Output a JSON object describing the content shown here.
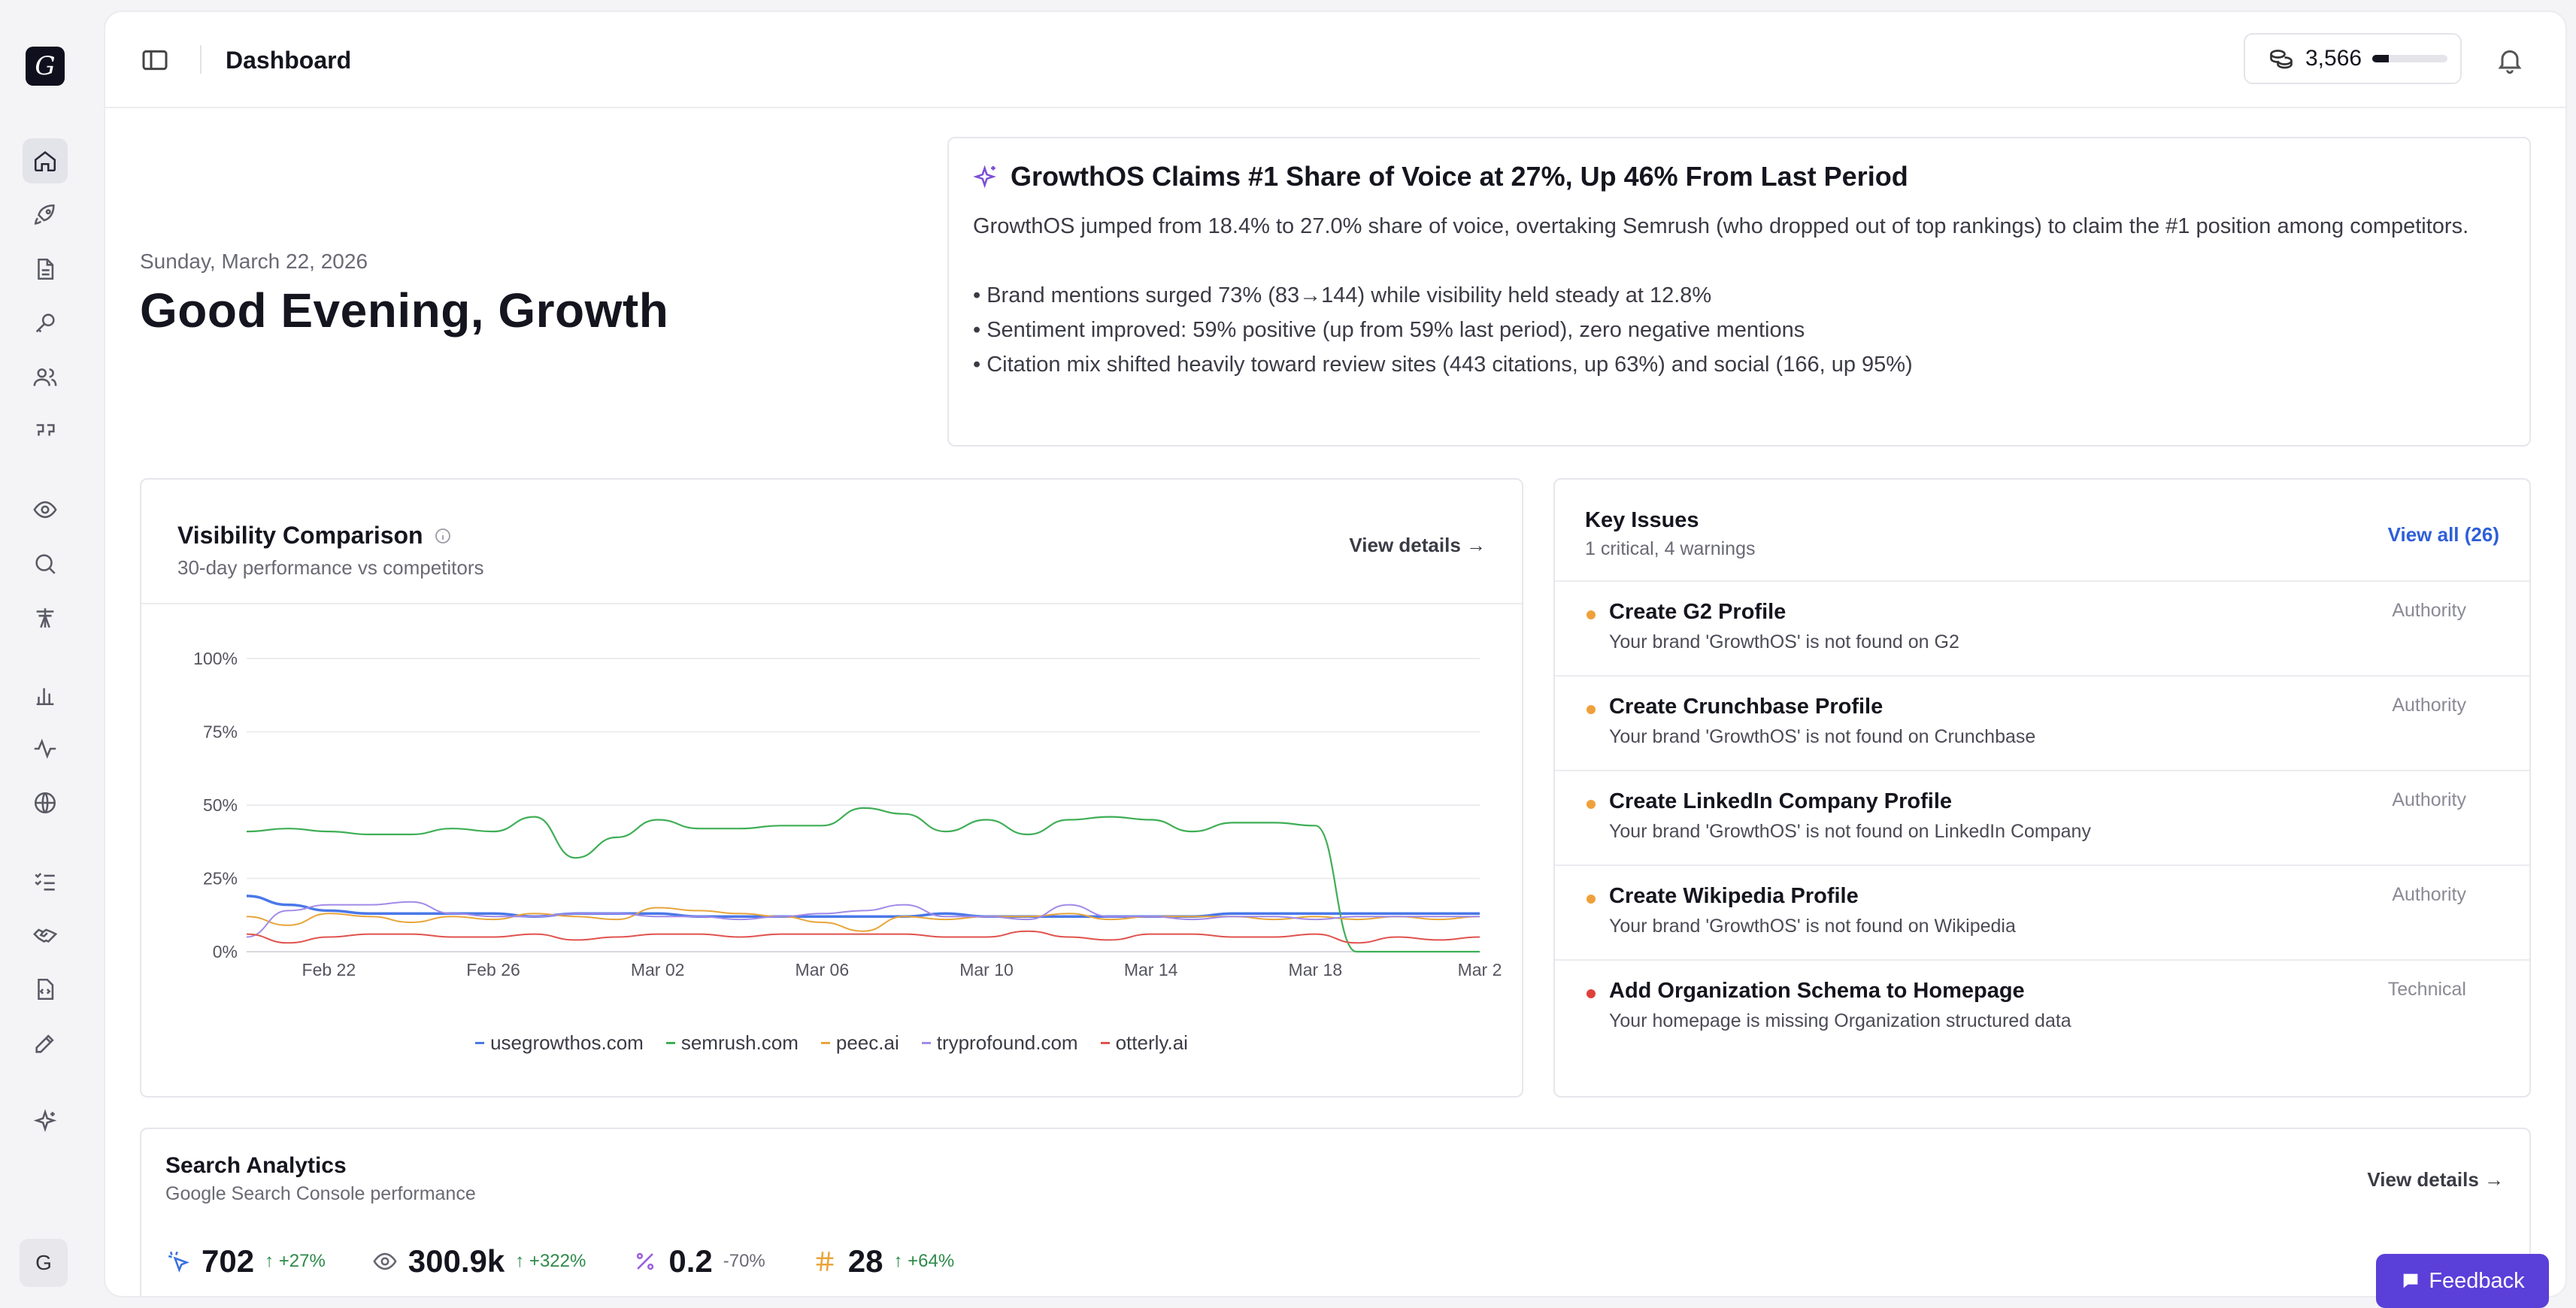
{
  "app": {
    "logo_letter": "G",
    "avatar_letter": "G"
  },
  "header": {
    "title": "Dashboard",
    "credits": "3,566",
    "credits_progress": 0.22
  },
  "greeting": {
    "date": "Sunday, March 22, 2026",
    "text": "Good Evening, Growth"
  },
  "insight": {
    "title": "GrowthOS Claims #1 Share of Voice at 27%, Up 46% From Last Period",
    "body": "GrowthOS jumped from 18.4% to 27.0% share of voice, overtaking Semrush (who dropped out of top rankings) to claim the #1 position among competitors.",
    "bullets": [
      "• Brand mentions surged 73% (83→144) while visibility held steady at 12.8%",
      "• Sentiment improved: 59% positive (up from 59% last period), zero negative mentions",
      "• Citation mix shifted heavily toward review sites (443 citations, up 63%) and social (166, up 95%)"
    ]
  },
  "visibility": {
    "title": "Visibility Comparison",
    "subtitle": "30-day performance vs competitors",
    "view_details": "View details →"
  },
  "chart_data": {
    "type": "line",
    "title": "Visibility Comparison",
    "ylim": [
      0,
      100
    ],
    "yticks": [
      "100%",
      "75%",
      "50%",
      "25%",
      "0%"
    ],
    "ytick_values": [
      100,
      75,
      50,
      25,
      0
    ],
    "xticks": [
      "Feb 22",
      "Feb 26",
      "Mar 02",
      "Mar 06",
      "Mar 10",
      "Mar 14",
      "Mar 18",
      "Mar 2"
    ],
    "xtick_index": [
      2,
      6,
      10,
      14,
      18,
      22,
      26,
      30
    ],
    "n_points": 31,
    "series": [
      {
        "name": "usegrowthos.com",
        "color": "#4a78e8",
        "width": 3.5,
        "values": [
          19,
          16,
          14,
          13,
          13,
          13,
          13,
          12,
          13,
          13,
          13,
          12,
          12,
          12,
          12,
          12,
          12,
          13,
          12,
          12,
          12,
          12,
          12,
          12,
          13,
          13,
          13,
          13,
          13,
          13,
          13
        ]
      },
      {
        "name": "semrush.com",
        "color": "#3fae56",
        "width": 2.2,
        "values": [
          41,
          42,
          41,
          40,
          40,
          42,
          41,
          46,
          32,
          39,
          45,
          42,
          42,
          43,
          43,
          49,
          47,
          41,
          45,
          40,
          45,
          46,
          45,
          41,
          44,
          44,
          43,
          0,
          0,
          0,
          0
        ]
      },
      {
        "name": "peec.ai",
        "color": "#e8a53a",
        "width": 2,
        "values": [
          12,
          9,
          13,
          12,
          10,
          12,
          11,
          13,
          12,
          11,
          15,
          14,
          13,
          12,
          10,
          7,
          12,
          11,
          12,
          12,
          13,
          11,
          12,
          12,
          12,
          11,
          12,
          11,
          12,
          11,
          12
        ]
      },
      {
        "name": "tryprofound.com",
        "color": "#a18ae8",
        "width": 2,
        "values": [
          5,
          14,
          16,
          16,
          17,
          13,
          12,
          12,
          13,
          13,
          12,
          12,
          11,
          12,
          13,
          14,
          16,
          12,
          12,
          11,
          16,
          12,
          12,
          11,
          12,
          12,
          11,
          12,
          12,
          12,
          12
        ]
      },
      {
        "name": "otterly.ai",
        "color": "#e0524e",
        "width": 2,
        "values": [
          6,
          3,
          5,
          6,
          6,
          5,
          5,
          6,
          4,
          5,
          6,
          6,
          5,
          6,
          6,
          6,
          6,
          5,
          5,
          7,
          5,
          4,
          6,
          6,
          5,
          5,
          6,
          3,
          5,
          4,
          5
        ]
      }
    ]
  },
  "issues": {
    "title": "Key Issues",
    "subtitle": "1 critical, 4 warnings",
    "view_all": "View all (26)",
    "items": [
      {
        "name": "Create G2 Profile",
        "desc": "Your brand 'GrowthOS' is not found on G2",
        "tag": "Authority",
        "color": "#f0a03a"
      },
      {
        "name": "Create Crunchbase Profile",
        "desc": "Your brand 'GrowthOS' is not found on Crunchbase",
        "tag": "Authority",
        "color": "#f0a03a"
      },
      {
        "name": "Create LinkedIn Company Profile",
        "desc": "Your brand 'GrowthOS' is not found on LinkedIn Company",
        "tag": "Authority",
        "color": "#f0a03a"
      },
      {
        "name": "Create Wikipedia Profile",
        "desc": "Your brand 'GrowthOS' is not found on Wikipedia",
        "tag": "Authority",
        "color": "#f0a03a"
      },
      {
        "name": "Add Organization Schema to Homepage",
        "desc": "Your homepage is missing Organization structured data",
        "tag": "Technical",
        "color": "#e0403c"
      }
    ]
  },
  "search": {
    "title": "Search Analytics",
    "subtitle": "Google Search Console performance",
    "view_details": "View details →",
    "metrics": [
      {
        "icon": "cursor-click-icon",
        "value": "702",
        "delta": "+27%",
        "dir": "up"
      },
      {
        "icon": "eye-icon",
        "value": "300.9k",
        "delta": "+322%",
        "dir": "up"
      },
      {
        "icon": "percent-icon",
        "value": "0.2",
        "delta": "-70%",
        "dir": "down"
      },
      {
        "icon": "hash-icon",
        "value": "28",
        "delta": "+64%",
        "dir": "up"
      }
    ]
  },
  "feedback": "Feedback"
}
